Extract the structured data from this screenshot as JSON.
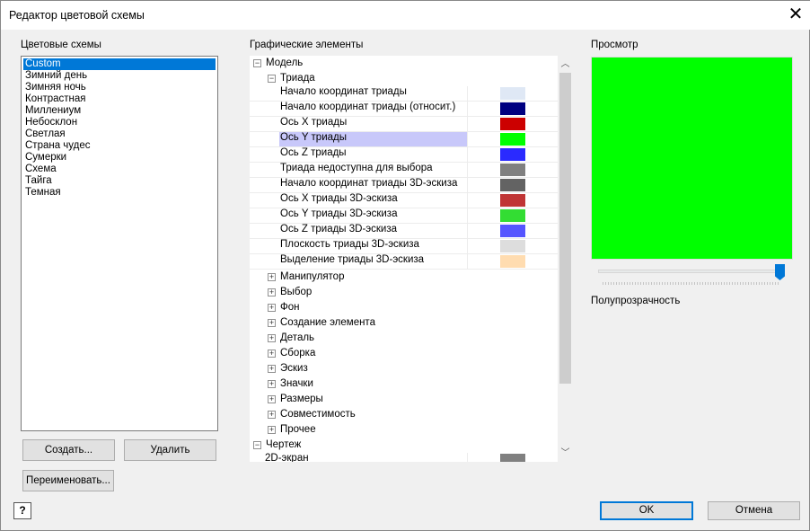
{
  "window": {
    "title": "Редактор цветовой схемы",
    "close_icon": "close-icon"
  },
  "schemes": {
    "label": "Цветовые схемы",
    "selected": 0,
    "items": [
      "Custom",
      "Зимний день",
      "Зимняя ночь",
      "Контрастная",
      "Миллениум",
      "Небосклон",
      "Светлая",
      "Страна чудес",
      "Сумерки",
      "Схема",
      "Тайга",
      "Темная"
    ]
  },
  "buttons": {
    "create": "Создать...",
    "delete": "Удалить",
    "rename": "Переименовать...",
    "ok": "OK",
    "cancel": "Отмена",
    "help": "?"
  },
  "elements": {
    "label": "Графические элементы",
    "model": "Модель",
    "triad": "Триада",
    "triad_items": [
      {
        "name": "Начало координат триады",
        "color": "#dfe8f5"
      },
      {
        "name": "Начало координат триады (относит.)",
        "color": "#000080"
      },
      {
        "name": "Ось X триады",
        "color": "#cc0000"
      },
      {
        "name": "Ось Y триады",
        "color": "#00ff00",
        "selected": true
      },
      {
        "name": "Ось Z триады",
        "color": "#2a2aff"
      },
      {
        "name": "Триада недоступна для выбора",
        "color": "#808080"
      },
      {
        "name": "Начало координат триады 3D-эскиза",
        "color": "#636363"
      },
      {
        "name": "Ось X триады 3D-эскиза",
        "color": "#c03535"
      },
      {
        "name": "Ось Y триады 3D-эскиза",
        "color": "#33dd33"
      },
      {
        "name": "Ось Z триады 3D-эскиза",
        "color": "#5555ff"
      },
      {
        "name": "Плоскость триады 3D-эскиза",
        "color": "#dddddd"
      },
      {
        "name": "Выделение триады 3D-эскиза",
        "color": "#ffdcb0"
      }
    ],
    "groups": [
      "Манипулятор",
      "Выбор",
      "Фон",
      "Создание элемента",
      "Деталь",
      "Сборка",
      "Эскиз",
      "Значки",
      "Размеры",
      "Совместимость",
      "Прочее"
    ],
    "drawing": "Чертеж",
    "drawing_items": [
      {
        "name": "2D-экран",
        "color": "#808080"
      }
    ]
  },
  "preview": {
    "label": "Просмотр",
    "color": "#00ff00",
    "transparency_label": "Полупрозрачность",
    "transparency_value": 1.0
  }
}
